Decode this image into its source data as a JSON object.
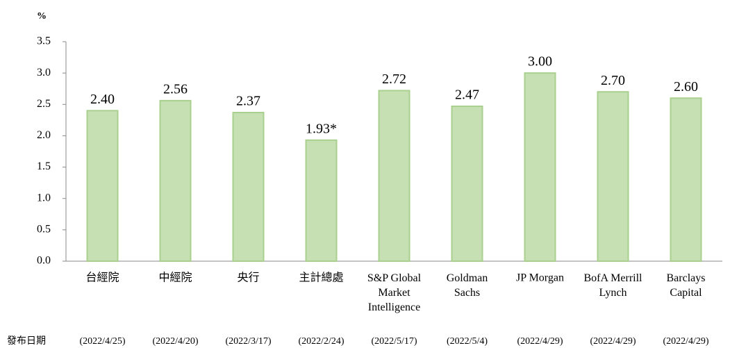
{
  "chart_data": {
    "type": "bar",
    "unit_label": "%",
    "categories": [
      "台經院",
      "中經院",
      "央行",
      "主計總處",
      "S&P Global\nMarket\nIntelligence",
      "Goldman\nSachs",
      "JP Morgan",
      "BofA Merrill\nLynch",
      "Barclays\nCapital"
    ],
    "values": [
      2.4,
      2.56,
      2.37,
      1.93,
      2.72,
      2.47,
      3.0,
      2.7,
      2.6
    ],
    "value_labels": [
      "2.40",
      "2.56",
      "2.37",
      "1.93*",
      "2.72",
      "2.47",
      "3.00",
      "2.70",
      "2.60"
    ],
    "date_label": "發布日期",
    "dates": [
      "(2022/4/25)",
      "(2022/4/20)",
      "(2022/3/17)",
      "(2022/2/24)",
      "(2022/5/17)",
      "(2022/5/4)",
      "(2022/4/29)",
      "(2022/4/29)",
      "(2022/4/29)"
    ],
    "color": "#c6e0b4",
    "ylim": [
      0,
      3.5
    ],
    "yticks": [
      {
        "value": 0,
        "label": "0.0"
      },
      {
        "value": 0.5,
        "label": "0.5"
      },
      {
        "value": 1,
        "label": "1.0"
      },
      {
        "value": 1.5,
        "label": "1.5"
      },
      {
        "value": 2,
        "label": "2.0"
      },
      {
        "value": 2.5,
        "label": "2.5"
      },
      {
        "value": 3,
        "label": "3.0"
      },
      {
        "value": 3.5,
        "label": "3.5"
      }
    ],
    "grid": false
  }
}
